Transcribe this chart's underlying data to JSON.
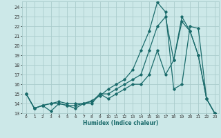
{
  "xlabel": "Humidex (Indice chaleur)",
  "background_color": "#cce8e8",
  "grid_color": "#aacccc",
  "line_color": "#1a6b6b",
  "xlim": [
    -0.5,
    23.5
  ],
  "ylim": [
    13,
    24.6
  ],
  "xticks": [
    0,
    1,
    2,
    3,
    4,
    5,
    6,
    7,
    8,
    9,
    10,
    11,
    12,
    13,
    14,
    15,
    16,
    17,
    18,
    19,
    20,
    21,
    22,
    23
  ],
  "yticks": [
    13,
    14,
    15,
    16,
    17,
    18,
    19,
    20,
    21,
    22,
    23,
    24
  ],
  "series1_x": [
    0,
    1,
    2,
    3,
    4,
    5,
    6,
    7,
    8,
    9,
    10,
    11,
    12,
    13,
    14,
    15,
    16,
    17,
    18,
    19,
    20,
    21,
    22,
    23
  ],
  "series1_y": [
    15,
    13.5,
    13.8,
    13.2,
    14.0,
    13.8,
    13.8,
    14.0,
    14.3,
    14.8,
    15.5,
    16.0,
    16.5,
    17.5,
    19.5,
    21.5,
    24.5,
    23.5,
    15.5,
    16.0,
    22.0,
    21.8,
    14.5,
    13.0
  ],
  "series2_x": [
    0,
    1,
    2,
    3,
    4,
    5,
    6,
    7,
    8,
    9,
    10,
    11,
    12,
    13,
    14,
    15,
    16,
    17,
    18,
    19,
    20,
    21,
    22,
    23
  ],
  "series2_y": [
    15,
    13.5,
    13.8,
    14.0,
    14.2,
    14.0,
    14.0,
    14.0,
    14.2,
    15.0,
    15.0,
    15.5,
    16.0,
    16.5,
    17.0,
    19.5,
    22.0,
    23.0,
    18.5,
    23.0,
    21.5,
    19.0,
    14.5,
    13.0
  ],
  "series3_x": [
    0,
    1,
    2,
    3,
    4,
    5,
    6,
    7,
    8,
    9,
    10,
    11,
    12,
    13,
    14,
    15,
    16,
    17,
    18,
    19,
    20,
    21,
    22,
    23
  ],
  "series3_y": [
    15,
    13.5,
    13.8,
    14.0,
    14.0,
    13.8,
    13.5,
    14.0,
    14.0,
    15.0,
    14.5,
    15.0,
    15.5,
    16.0,
    16.0,
    17.0,
    19.5,
    17.0,
    18.5,
    22.5,
    21.5,
    19.0,
    14.5,
    13.0
  ]
}
